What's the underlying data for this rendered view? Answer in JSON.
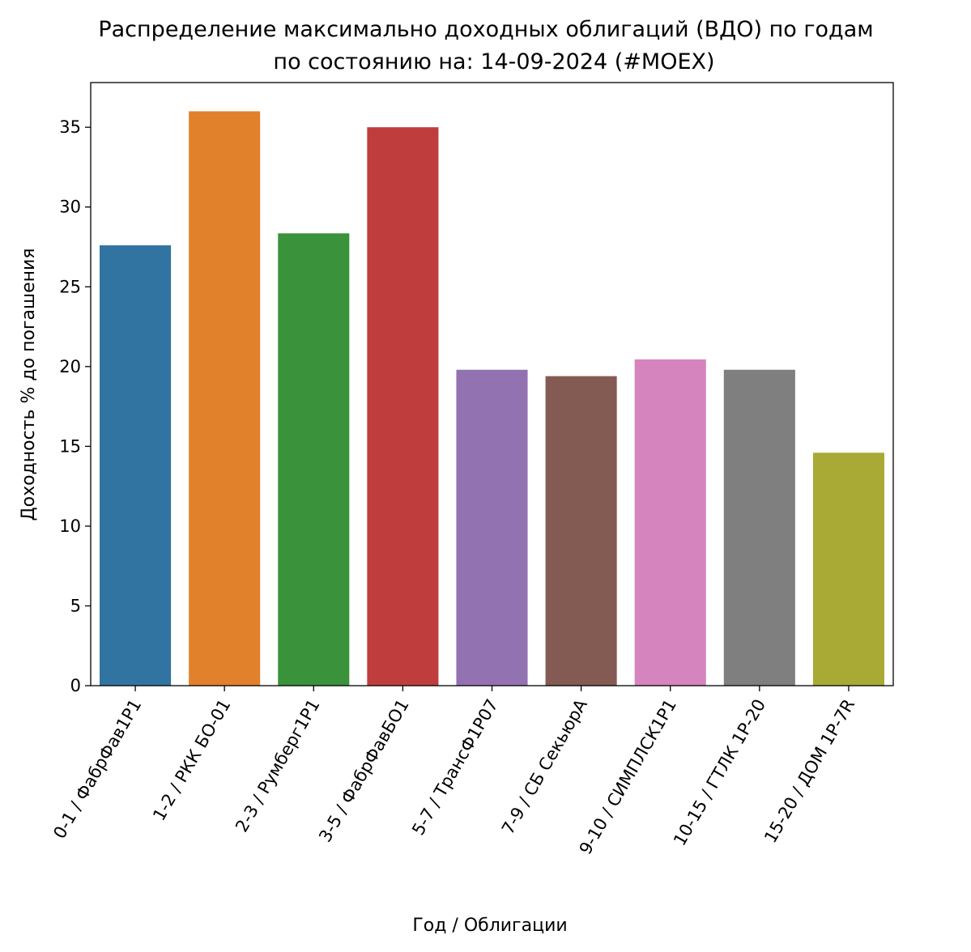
{
  "chart_data": {
    "type": "bar",
    "title": "Распределение максимально доходных облигаций (ВДО) по годам",
    "subtitle": "по состоянию на: 14-09-2024 (#MOEX)",
    "xlabel": "Год / Облигации",
    "ylabel": "Доходность % до погашения",
    "ylim": [
      0,
      37.8
    ],
    "yticks": [
      0,
      5,
      10,
      15,
      20,
      25,
      30,
      35
    ],
    "grid": false,
    "categories": [
      "0-1 / ФабрФав1Р1",
      "1-2 / РКК БО-01",
      "2-3 / Румберг1Р1",
      "3-5 / ФабрФавБО1",
      "5-7 / ТрансФ1Р07",
      "7-9 / СБ СекьюрА",
      "9-10 / СИМПЛСК1Р1",
      "10-15 / ГТЛК 1Р-20",
      "15-20 / ДОМ 1Р-7R"
    ],
    "values": [
      27.6,
      36.0,
      28.35,
      35.0,
      19.8,
      19.4,
      20.45,
      19.8,
      14.6
    ],
    "colors": [
      "#3274a1",
      "#e1812c",
      "#3a923a",
      "#c03d3e",
      "#9372b2",
      "#845b53",
      "#d684bd",
      "#7f7f7f",
      "#a9aa35"
    ]
  }
}
